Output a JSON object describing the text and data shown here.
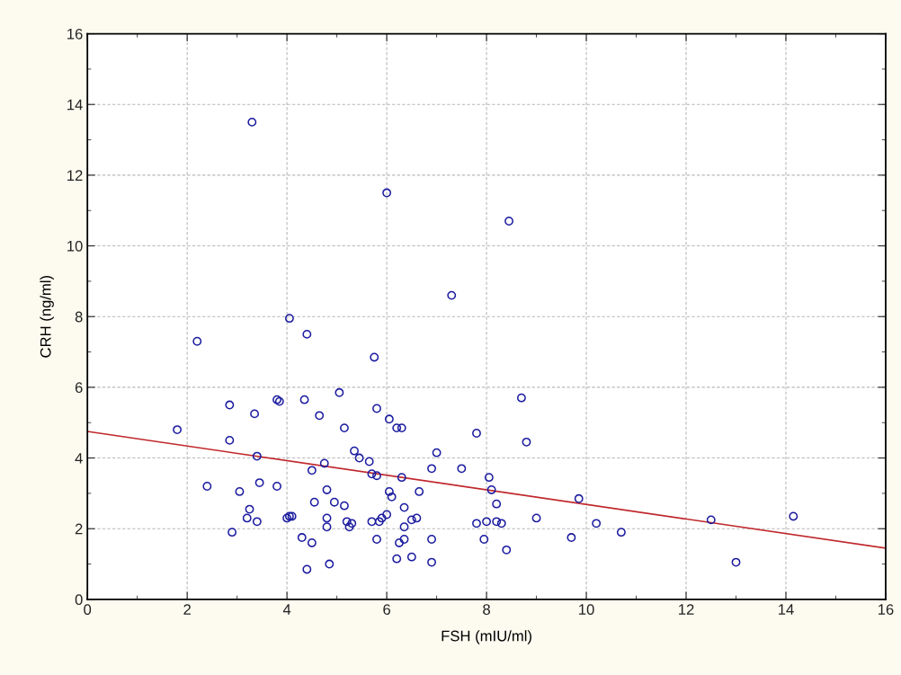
{
  "chart_data": {
    "type": "scatter",
    "xlabel": "FSH (mIU/ml)",
    "ylabel": "CRH (ng/ml)",
    "xlim": [
      0,
      16
    ],
    "xticks": [
      0,
      2,
      4,
      6,
      8,
      10,
      12,
      14,
      16
    ],
    "ylim": [
      0,
      16
    ],
    "yticks": [
      0,
      2,
      4,
      6,
      8,
      10,
      12,
      14,
      16
    ],
    "grid": true,
    "marker": "circle",
    "series": [
      {
        "color": "#1c1ca0",
        "x": [
          1.8,
          2.2,
          2.4,
          2.85,
          2.85,
          2.9,
          3.05,
          3.2,
          3.25,
          3.3,
          3.35,
          3.4,
          3.4,
          3.45,
          3.8,
          3.8,
          3.85,
          4.0,
          4.05,
          4.05,
          4.1,
          4.3,
          4.35,
          4.4,
          4.4,
          4.5,
          4.5,
          4.55,
          4.65,
          4.75,
          4.8,
          4.8,
          4.8,
          4.85,
          4.95,
          5.05,
          5.15,
          5.15,
          5.2,
          5.25,
          5.3,
          5.35,
          5.45,
          5.65,
          5.7,
          5.7,
          5.75,
          5.8,
          5.8,
          5.8,
          5.85,
          5.9,
          6.0,
          6.0,
          6.05,
          6.05,
          6.1,
          6.2,
          6.2,
          6.25,
          6.3,
          6.3,
          6.35,
          6.35,
          6.35,
          6.5,
          6.5,
          6.6,
          6.65,
          6.9,
          6.9,
          6.9,
          7.0,
          7.3,
          7.5,
          7.8,
          7.8,
          7.95,
          8.0,
          8.05,
          8.1,
          8.2,
          8.2,
          8.3,
          8.4,
          8.45,
          8.7,
          8.8,
          9.0,
          9.7,
          9.85,
          10.2,
          10.7,
          12.5,
          13.0,
          14.15
        ],
        "values": [
          4.8,
          7.3,
          3.2,
          5.5,
          4.5,
          1.9,
          3.05,
          2.3,
          2.55,
          13.5,
          5.25,
          2.2,
          4.05,
          3.3,
          3.2,
          5.65,
          5.6,
          2.3,
          7.95,
          2.35,
          2.35,
          1.75,
          5.65,
          0.85,
          7.5,
          3.65,
          1.6,
          2.75,
          5.2,
          3.85,
          3.1,
          2.3,
          2.05,
          1.0,
          2.75,
          5.85,
          2.65,
          4.85,
          2.2,
          2.05,
          2.15,
          4.2,
          4.0,
          3.9,
          2.2,
          3.55,
          6.85,
          1.7,
          5.4,
          3.5,
          2.2,
          2.3,
          11.5,
          2.4,
          5.1,
          3.05,
          2.9,
          1.15,
          4.85,
          1.6,
          4.85,
          3.45,
          2.6,
          2.05,
          1.7,
          2.25,
          1.2,
          2.3,
          3.05,
          1.7,
          1.05,
          3.7,
          4.15,
          8.6,
          3.7,
          4.7,
          2.15,
          1.7,
          2.2,
          3.45,
          3.1,
          2.7,
          2.2,
          2.15,
          1.4,
          10.7,
          5.7,
          4.45,
          2.3,
          1.75,
          2.85,
          2.15,
          1.9,
          2.25,
          1.05,
          2.35
        ]
      },
      {
        "type": "line",
        "color": "#c0282c",
        "x": [
          0,
          16
        ],
        "values": [
          4.75,
          1.45
        ],
        "marker": "none",
        "line_style": "solid"
      }
    ]
  }
}
